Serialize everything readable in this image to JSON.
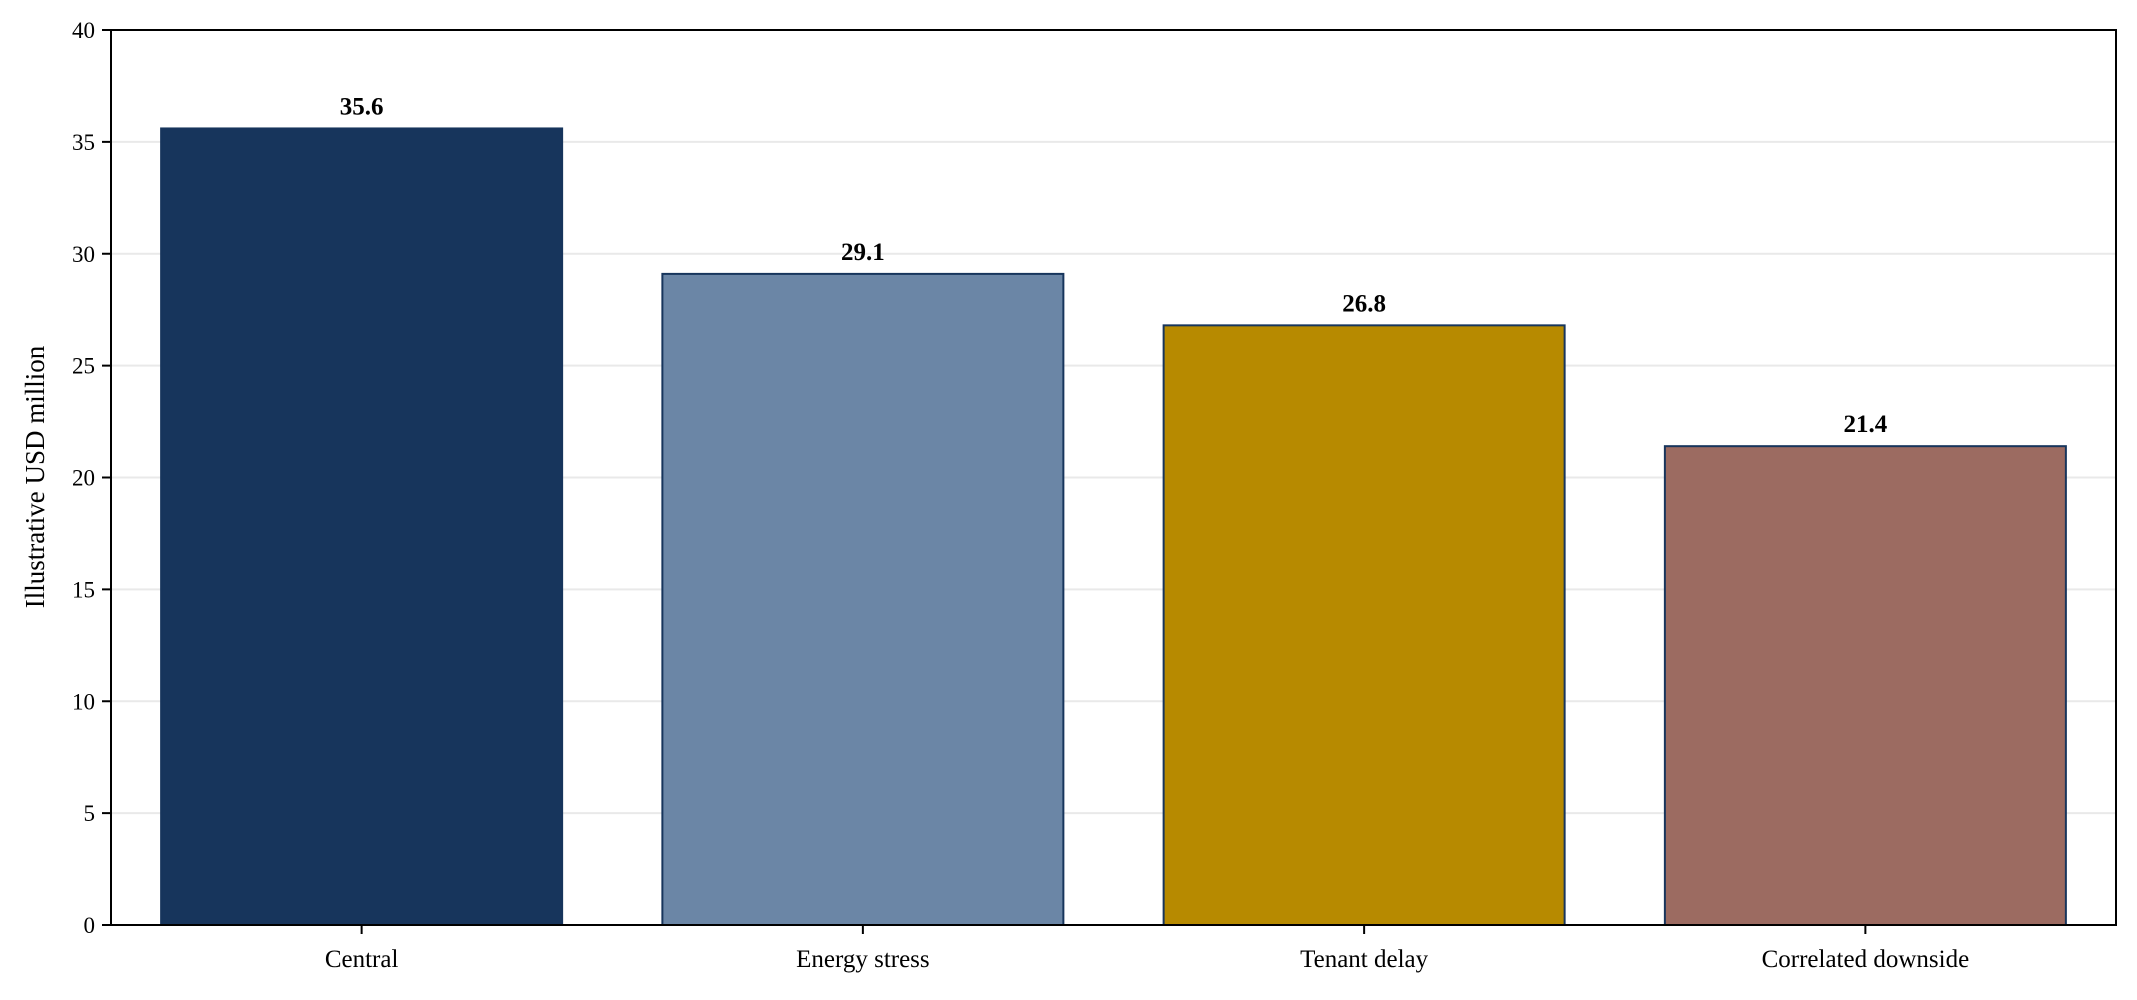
{
  "chart_data": {
    "type": "bar",
    "title": "",
    "xlabel": "",
    "ylabel": "Illustrative USD million",
    "categories": [
      "Central",
      "Energy stress",
      "Tenant delay",
      "Correlated downside"
    ],
    "values": [
      35.6,
      29.1,
      26.8,
      21.4
    ],
    "value_labels": [
      "35.6",
      "29.1",
      "26.8",
      "21.4"
    ],
    "colors": [
      "#17355c",
      "#6b86a6",
      "#b78a00",
      "#9c6b61"
    ],
    "edge_color": "#17355c",
    "ylim": [
      0,
      40
    ],
    "yticks": [
      0,
      5,
      10,
      15,
      20,
      25,
      30,
      35,
      40
    ],
    "ytick_labels": [
      "0",
      "5",
      "10",
      "15",
      "20",
      "25",
      "30",
      "35",
      "40"
    ],
    "grid": "horizontal"
  }
}
